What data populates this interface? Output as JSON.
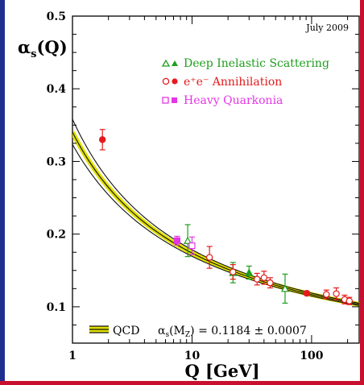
{
  "chart_data": {
    "type": "scatter",
    "note_top_right": "July 2009",
    "ylabel": "αs(Q)",
    "ylabel_main": "α",
    "ylabel_sub": "s",
    "ylabel_tail": "(Q)",
    "xlabel": "Q [GeV]",
    "x_scale": "log",
    "xlim": [
      1,
      250
    ],
    "ylim": [
      0.05,
      0.5
    ],
    "x_ticks": [
      {
        "value": 1,
        "label": "1"
      },
      {
        "value": 10,
        "label": "10"
      },
      {
        "value": 100,
        "label": "100"
      }
    ],
    "y_ticks": [
      {
        "value": 0.1,
        "label": "0.1"
      },
      {
        "value": 0.2,
        "label": "0.2"
      },
      {
        "value": 0.3,
        "label": "0.3"
      },
      {
        "value": 0.4,
        "label": "0.4"
      },
      {
        "value": 0.5,
        "label": "0.5"
      }
    ],
    "legend": {
      "placement": "top-right",
      "entries": [
        {
          "label": "Deep Inelastic Scattering",
          "color": "#1e9e1e",
          "symbol": "triangle"
        },
        {
          "label": "e⁺e⁻ Annihilation",
          "color": "#e41a1c",
          "symbol": "circle"
        },
        {
          "label": "Heavy Quarkonia",
          "color": "#e535e5",
          "symbol": "square"
        }
      ]
    },
    "bottom_legend": {
      "label": "QCD",
      "formula": "αs(MZ) = 0.1184 ± 0.0007",
      "formula_main": "α",
      "formula_sub": "s",
      "formula_mid": "(M",
      "formula_sub2": "Z",
      "formula_tail": ") = 0.1184 ± 0.0007"
    },
    "curve": {
      "alpha_mz": 0.1184,
      "uncertainty": 0.0007,
      "mz": 91.19,
      "band_color": "#e0e000",
      "edge_color": "#101010"
    },
    "series": [
      {
        "name": "Deep Inelastic Scattering",
        "color": "#1e9e1e",
        "points": [
          {
            "x": 9.2,
            "y": 0.191,
            "err": 0.022,
            "filled": false
          },
          {
            "x": 22,
            "y": 0.147,
            "err": 0.014,
            "filled": true
          },
          {
            "x": 30,
            "y": 0.147,
            "err": 0.009,
            "filled": true
          },
          {
            "x": 60,
            "y": 0.125,
            "err": 0.02,
            "filled": false
          }
        ]
      },
      {
        "name": "e⁺e⁻ Annihilation",
        "color": "#e41a1c",
        "points": [
          {
            "x": 1.78,
            "y": 0.33,
            "err": 0.014,
            "filled": true
          },
          {
            "x": 14,
            "y": 0.168,
            "err": 0.015,
            "filled": false
          },
          {
            "x": 22,
            "y": 0.148,
            "err": 0.01,
            "filled": false
          },
          {
            "x": 35,
            "y": 0.138,
            "err": 0.008,
            "filled": false
          },
          {
            "x": 40,
            "y": 0.14,
            "err": 0.009,
            "filled": false
          },
          {
            "x": 45,
            "y": 0.133,
            "err": 0.007,
            "filled": false
          },
          {
            "x": 91.2,
            "y": 0.1185,
            "err": 0.003,
            "filled": true
          },
          {
            "x": 133,
            "y": 0.117,
            "err": 0.006,
            "filled": false
          },
          {
            "x": 161,
            "y": 0.118,
            "err": 0.008,
            "filled": false
          },
          {
            "x": 189,
            "y": 0.11,
            "err": 0.006,
            "filled": false
          },
          {
            "x": 207,
            "y": 0.108,
            "err": 0.005,
            "filled": false
          }
        ]
      },
      {
        "name": "Heavy Quarkonia",
        "color": "#e535e5",
        "points": [
          {
            "x": 7.5,
            "y": 0.191,
            "err": 0.006,
            "filled": true
          },
          {
            "x": 10.0,
            "y": 0.184,
            "err": 0.012,
            "filled": false
          }
        ]
      }
    ]
  }
}
